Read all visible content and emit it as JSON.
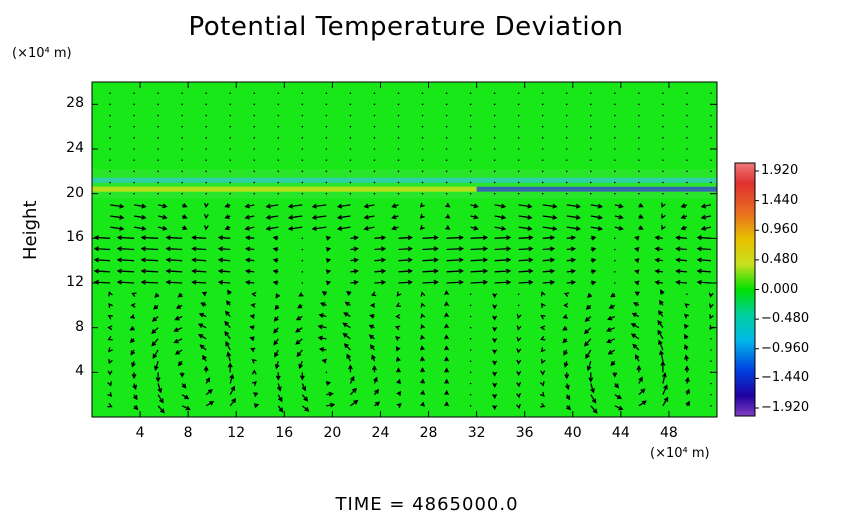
{
  "chart_data": {
    "type": "heatmap",
    "title": "Potential Temperature Deviation",
    "ylabel": "Height",
    "y_unit": "(×10⁴ m)",
    "x_unit": "(×10⁴ m)",
    "xlim": [
      0,
      52
    ],
    "ylim": [
      0,
      30
    ],
    "x_ticks": [
      "4",
      "8",
      "12",
      "16",
      "20",
      "24",
      "28",
      "32",
      "36",
      "40",
      "44",
      "48"
    ],
    "y_ticks": [
      "4",
      "8",
      "12",
      "16",
      "20",
      "24",
      "28"
    ],
    "colorbar": {
      "ticks": [
        "1.920",
        "1.440",
        "0.960",
        "0.480",
        "0.000",
        "−0.480",
        "−0.960",
        "−1.440",
        "−1.920"
      ],
      "range": [
        -1.92,
        1.92
      ]
    },
    "field": {
      "background_value": 0.0,
      "features": [
        {
          "description_value": "warm band",
          "y_center": 20.4,
          "x_range": [
            0,
            52
          ],
          "value": 0.9
        },
        {
          "description_value": "cool band",
          "y_center": 21.2,
          "x_range": [
            0,
            52
          ],
          "value": -0.4
        },
        {
          "description_value": "cold streak",
          "y_center": 20.4,
          "x_range": [
            32,
            52
          ],
          "value": -1.2
        }
      ]
    },
    "grid": false,
    "vectors_overlay": true
  },
  "footer": {
    "time_label": "TIME  =  4865000.0"
  }
}
